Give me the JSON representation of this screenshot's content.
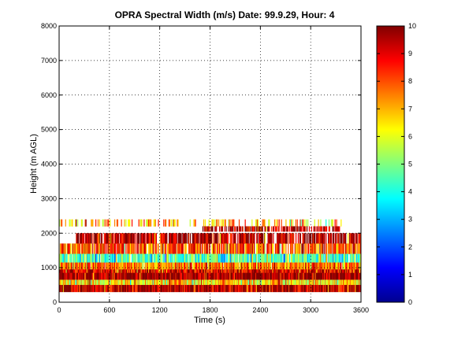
{
  "chart_data": {
    "type": "heatmap",
    "title": "OPRA Spectral Width (m/s)  Date: 99.9.29, Hour: 4",
    "xlabel": "Time (s)",
    "ylabel": "Height (m AGL)",
    "xlim": [
      0,
      3600
    ],
    "ylim": [
      0,
      8000
    ],
    "xticks": [
      0,
      600,
      1200,
      1800,
      2400,
      3000,
      3600
    ],
    "yticks": [
      0,
      1000,
      2000,
      3000,
      4000,
      5000,
      6000,
      7000,
      8000
    ],
    "grid": "dotted",
    "colorbar": {
      "colormap": "jet",
      "range": [
        0,
        10
      ],
      "ticks": [
        0,
        1,
        2,
        3,
        4,
        5,
        6,
        7,
        8,
        9,
        10
      ]
    },
    "bands": [
      {
        "height_low": 2200,
        "height_high": 2400,
        "value": 7.0,
        "coverage": 0.35,
        "x_start": 0,
        "x_end": 3400
      },
      {
        "height_low": 2050,
        "height_high": 2200,
        "value": 9.6,
        "coverage": 0.75,
        "x_start": 1700,
        "x_end": 3350
      },
      {
        "height_low": 1700,
        "height_high": 2000,
        "value": 9.5,
        "coverage": 0.8,
        "x_start": 200,
        "x_end": 3600
      },
      {
        "height_low": 1400,
        "height_high": 1700,
        "value": 8.0,
        "coverage": 0.85,
        "x_start": 0,
        "x_end": 3600
      },
      {
        "height_low": 1150,
        "height_high": 1400,
        "value": 4.5,
        "coverage": 0.9,
        "x_start": 0,
        "x_end": 3600
      },
      {
        "height_low": 950,
        "height_high": 1150,
        "value": 7.5,
        "coverage": 0.95,
        "x_start": 0,
        "x_end": 3600
      },
      {
        "height_low": 850,
        "height_high": 950,
        "value": 9.0,
        "coverage": 1.0,
        "x_start": 0,
        "x_end": 3600
      },
      {
        "height_low": 650,
        "height_high": 850,
        "value": 9.9,
        "coverage": 1.0,
        "x_start": 0,
        "x_end": 3600
      },
      {
        "height_low": 500,
        "height_high": 650,
        "value": 6.5,
        "coverage": 1.0,
        "x_start": 0,
        "x_end": 3600
      },
      {
        "height_low": 300,
        "height_high": 500,
        "value": 9.5,
        "coverage": 1.0,
        "x_start": 0,
        "x_end": 3600
      }
    ]
  }
}
